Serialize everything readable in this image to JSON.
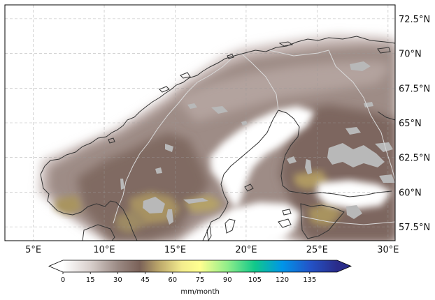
{
  "map": {
    "projection": "PlateCarree",
    "extent_lon": [
      3,
      30.5
    ],
    "extent_lat": [
      56.5,
      73.5
    ],
    "x_ticks": [
      {
        "value": 5,
        "label": "5°E"
      },
      {
        "value": 10,
        "label": "10°E"
      },
      {
        "value": 15,
        "label": "15°E"
      },
      {
        "value": 20,
        "label": "20°E"
      },
      {
        "value": 25,
        "label": "25°E"
      },
      {
        "value": 30,
        "label": "30°E"
      }
    ],
    "y_ticks": [
      {
        "value": 57.5,
        "label": "57.5°N"
      },
      {
        "value": 60,
        "label": "60°N"
      },
      {
        "value": 62.5,
        "label": "62.5°N"
      },
      {
        "value": 65,
        "label": "65°N"
      },
      {
        "value": 67.5,
        "label": "67.5°N"
      },
      {
        "value": 70,
        "label": "70°N"
      },
      {
        "value": 72.5,
        "label": "72.5°N"
      }
    ],
    "gridlines": true,
    "gridline_style": "dashed",
    "lakes_color": "#b8b8b8",
    "coastline_color": "#333333",
    "border_color": "#d9d9d9"
  },
  "colorbar": {
    "orientation": "horizontal",
    "unit_label": "mm/month",
    "ticks": [
      {
        "value": 0,
        "label": "0"
      },
      {
        "value": 15,
        "label": "15"
      },
      {
        "value": 30,
        "label": "30"
      },
      {
        "value": 45,
        "label": "45"
      },
      {
        "value": 60,
        "label": "60"
      },
      {
        "value": 75,
        "label": "75"
      },
      {
        "value": 90,
        "label": "90"
      },
      {
        "value": 105,
        "label": "105"
      },
      {
        "value": 120,
        "label": "120"
      },
      {
        "value": 135,
        "label": "135"
      }
    ],
    "range": [
      0,
      150
    ],
    "extend": "both",
    "colormap": [
      {
        "value": 0,
        "color": "#ffffff"
      },
      {
        "value": 15,
        "color": "#d8cfcc"
      },
      {
        "value": 30,
        "color": "#9b8a84"
      },
      {
        "value": 42,
        "color": "#7a6158"
      },
      {
        "value": 52,
        "color": "#b9a469"
      },
      {
        "value": 65,
        "color": "#f3ec8e"
      },
      {
        "value": 75,
        "color": "#ffff90"
      },
      {
        "value": 90,
        "color": "#90ee8a"
      },
      {
        "value": 105,
        "color": "#10c88a"
      },
      {
        "value": 120,
        "color": "#0095e8"
      },
      {
        "value": 135,
        "color": "#2354c8"
      },
      {
        "value": 150,
        "color": "#2a2c8a"
      }
    ]
  }
}
